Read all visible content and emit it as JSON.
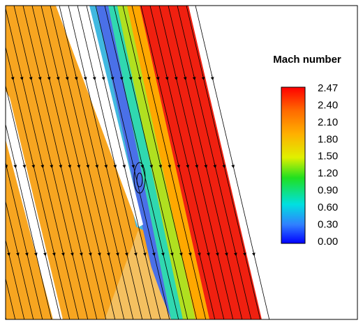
{
  "legend": {
    "title": "Mach number",
    "labels": [
      "2.47",
      "2.40",
      "2.10",
      "1.80",
      "1.50",
      "1.20",
      "0.90",
      "0.60",
      "0.30",
      "0.00"
    ]
  }
}
